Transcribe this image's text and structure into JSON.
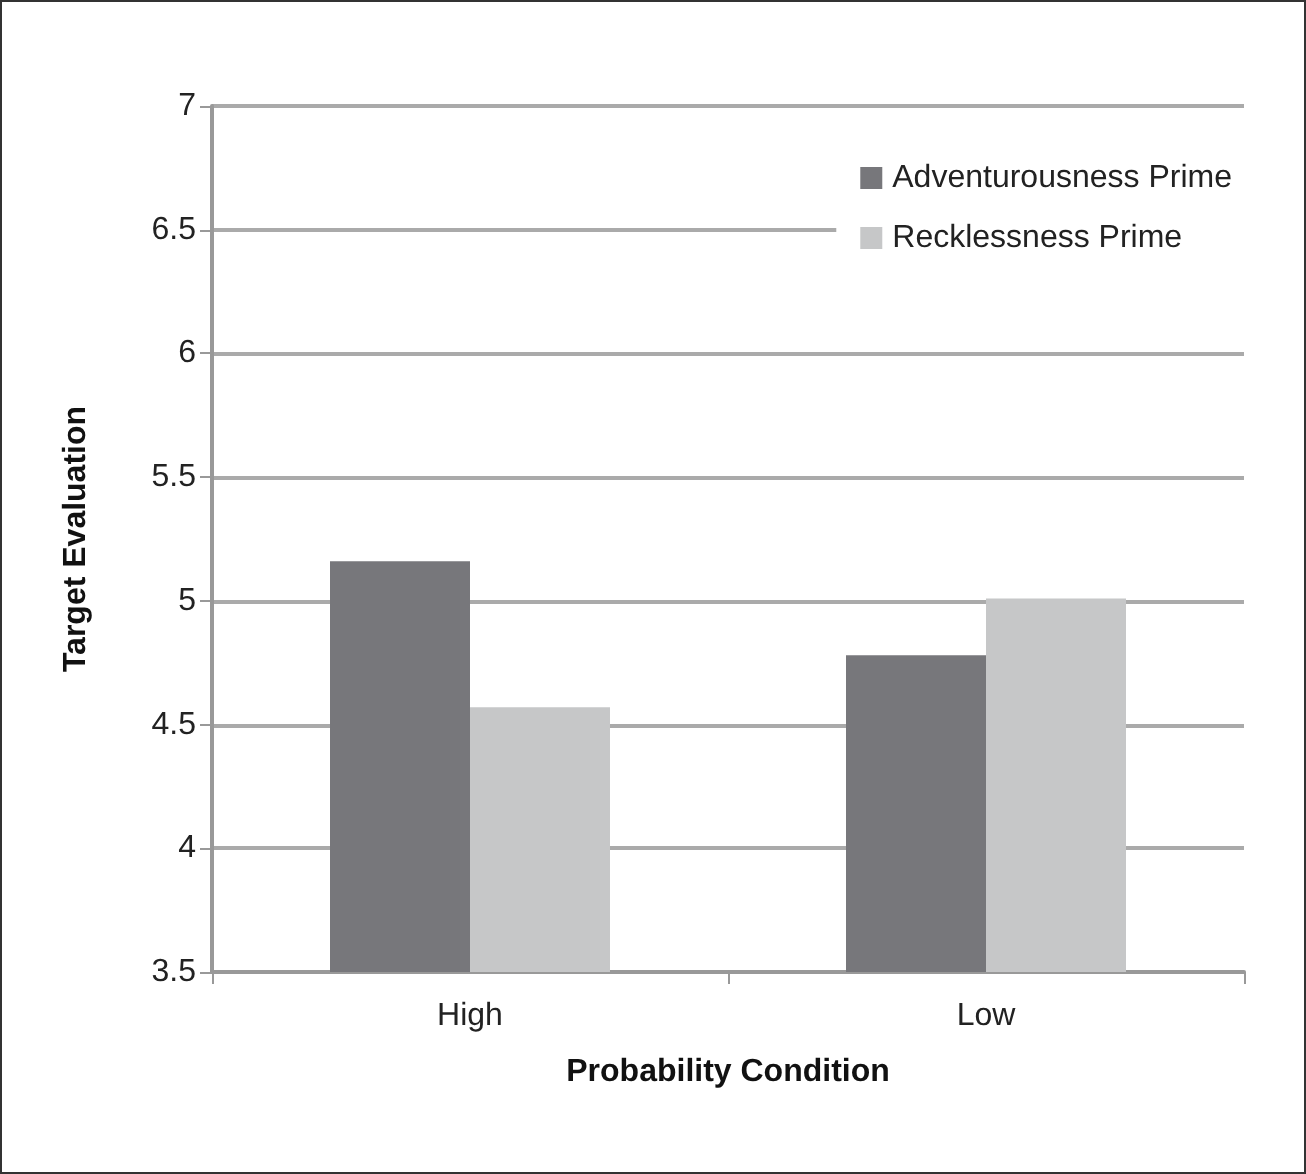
{
  "chart_data": {
    "type": "bar",
    "xlabel": "Probability Condition",
    "ylabel": "Target Evaluation",
    "categories": [
      "High",
      "Low"
    ],
    "series": [
      {
        "name": "Adventurousness Prime",
        "color": "#77777b",
        "values": [
          5.16,
          4.78
        ]
      },
      {
        "name": "Recklessness Prime",
        "color": "#c6c7c8",
        "values": [
          4.57,
          5.01
        ]
      }
    ],
    "ylim": [
      3.5,
      7
    ],
    "yticks": [
      3.5,
      4,
      4.5,
      5,
      5.5,
      6,
      6.5,
      7
    ],
    "grid": "y",
    "legend": "top right"
  }
}
